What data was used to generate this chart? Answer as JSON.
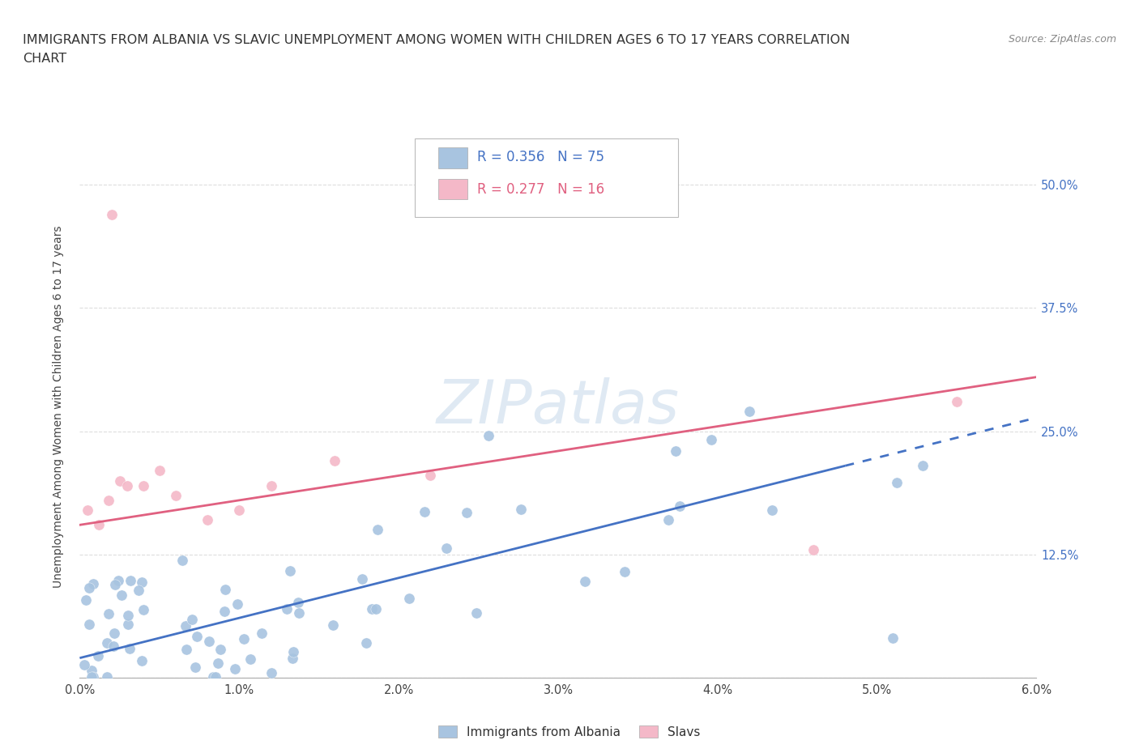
{
  "title_line1": "IMMIGRANTS FROM ALBANIA VS SLAVIC UNEMPLOYMENT AMONG WOMEN WITH CHILDREN AGES 6 TO 17 YEARS CORRELATION",
  "title_line2": "CHART",
  "source": "Source: ZipAtlas.com",
  "ylabel": "Unemployment Among Women with Children Ages 6 to 17 years",
  "xlim": [
    0.0,
    0.06
  ],
  "ylim": [
    0.0,
    0.55
  ],
  "xticklabels": [
    "0.0%",
    "1.0%",
    "2.0%",
    "3.0%",
    "4.0%",
    "5.0%",
    "6.0%"
  ],
  "xtick_positions": [
    0.0,
    0.01,
    0.02,
    0.03,
    0.04,
    0.05,
    0.06
  ],
  "ytick_positions": [
    0.0,
    0.125,
    0.25,
    0.375,
    0.5
  ],
  "ytick_labels": [
    "",
    "12.5%",
    "25.0%",
    "37.5%",
    "50.0%"
  ],
  "albania_color": "#a8c4e0",
  "slavic_color": "#f4b8c8",
  "albania_line_color": "#4472c4",
  "slavic_line_color": "#e06080",
  "R_albania": 0.356,
  "N_albania": 75,
  "R_slavic": 0.277,
  "N_slavic": 16,
  "legend_labels": [
    "Immigrants from Albania",
    "Slavs"
  ],
  "alb_line_x0": 0.0,
  "alb_line_y0": 0.02,
  "alb_line_x1": 0.048,
  "alb_line_y1": 0.215,
  "slav_line_x0": 0.0,
  "slav_line_y0": 0.155,
  "slav_line_x1": 0.06,
  "slav_line_y1": 0.305,
  "grid_color": "#dddddd",
  "background_color": "#ffffff",
  "title_fontsize": 11.5,
  "axis_label_fontsize": 10,
  "tick_fontsize": 10.5,
  "legend_fontsize": 12
}
